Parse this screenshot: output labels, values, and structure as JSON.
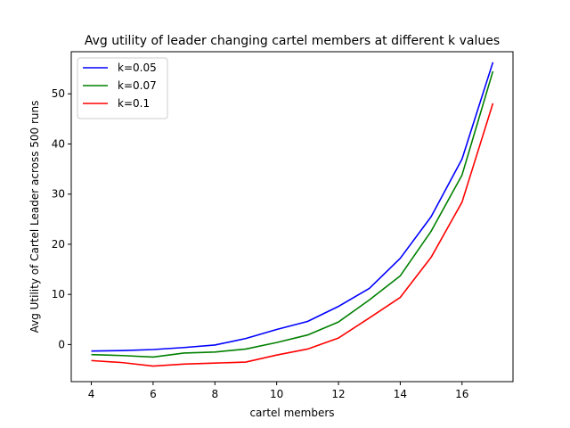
{
  "chart_data": {
    "type": "line",
    "title": "Avg utility of leader changing cartel members at different k values",
    "xlabel": "cartel members",
    "ylabel": "Avg Utility of Cartel Leader across 500 runs",
    "xlim": [
      3.35,
      17.65
    ],
    "ylim": [
      -7.4,
      58.4
    ],
    "xticks": [
      4,
      6,
      8,
      10,
      12,
      14,
      16
    ],
    "yticks": [
      0,
      10,
      20,
      30,
      40,
      50
    ],
    "grid": false,
    "legend_position": "upper-left",
    "x": [
      4,
      5,
      6,
      7,
      8,
      9,
      10,
      11,
      12,
      13,
      14,
      15,
      16,
      17
    ],
    "series": [
      {
        "name": "k=0.05",
        "color": "#0000ff",
        "values": [
          -1.3,
          -1.2,
          -1.0,
          -0.6,
          -0.1,
          1.2,
          3.0,
          4.6,
          7.6,
          11.2,
          17.2,
          25.5,
          37.0,
          56.3
        ]
      },
      {
        "name": "k=0.07",
        "color": "#008000",
        "values": [
          -2.0,
          -2.2,
          -2.5,
          -1.7,
          -1.5,
          -0.9,
          0.4,
          1.9,
          4.5,
          8.9,
          13.7,
          22.6,
          33.8,
          54.5
        ]
      },
      {
        "name": "k=0.1",
        "color": "#ff0000",
        "values": [
          -3.2,
          -3.6,
          -4.3,
          -3.9,
          -3.7,
          -3.5,
          -2.1,
          -0.9,
          1.3,
          5.3,
          9.4,
          17.4,
          28.4,
          48.1
        ]
      }
    ]
  }
}
